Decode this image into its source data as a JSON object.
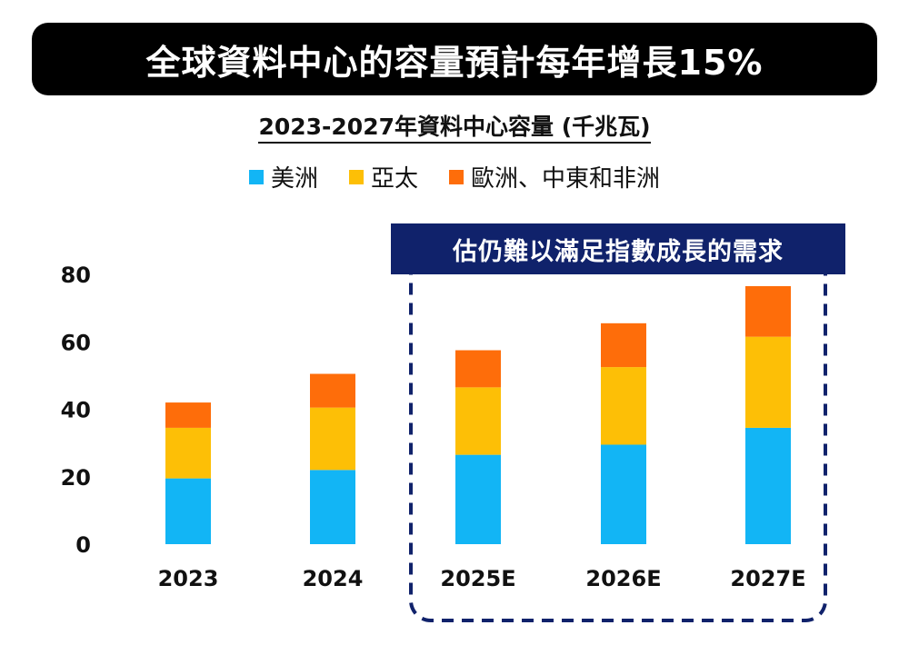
{
  "title": "全球資料中心的容量預計每年增長15%",
  "subtitle": "2023-2027年資料中心容量 (千兆瓦)",
  "callout": "估仍難以滿足指數成長的需求",
  "colors": {
    "title_bg": "#000000",
    "callout_bg": "#10226b",
    "dashed_box": "#10226b"
  },
  "chart_data": {
    "type": "bar",
    "stacked": true,
    "categories": [
      "2023",
      "2024",
      "2025E",
      "2026E",
      "2027E"
    ],
    "series": [
      {
        "name": "美洲",
        "color": "#12b5f5",
        "values": [
          19.5,
          22,
          26.5,
          29.5,
          34.5
        ]
      },
      {
        "name": "亞太",
        "color": "#fdbf06",
        "values": [
          15,
          18.5,
          20,
          23,
          27
        ]
      },
      {
        "name": "歐洲、中東和非洲",
        "color": "#fe6d0a",
        "values": [
          7.5,
          10,
          11,
          13,
          15
        ]
      }
    ],
    "ylim": [
      0,
      80
    ],
    "yticks": [
      "0",
      "20",
      "40",
      "60",
      "80"
    ],
    "grid": false,
    "legend": "top"
  }
}
